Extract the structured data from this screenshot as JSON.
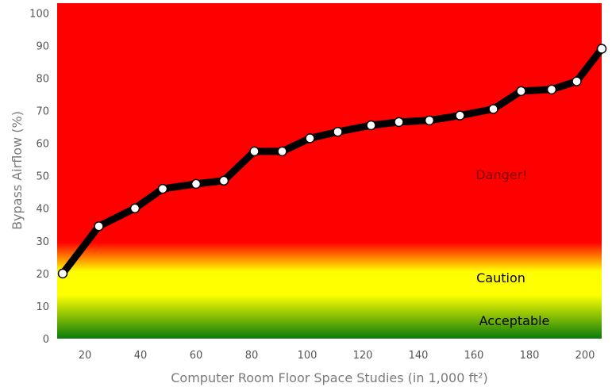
{
  "chart_data": {
    "type": "line",
    "xlabel": "Computer Room Floor Space Studies (in 1,000 ft²)",
    "ylabel": "Bypass Airflow (%)",
    "xlim": [
      10,
      206
    ],
    "ylim": [
      0,
      103
    ],
    "xticks": [
      20,
      40,
      60,
      80,
      100,
      120,
      140,
      160,
      180,
      200
    ],
    "yticks": [
      0,
      10,
      20,
      30,
      40,
      50,
      60,
      70,
      80,
      90,
      100
    ],
    "grid": false,
    "series": [
      {
        "x": [
          12,
          25,
          38,
          48,
          60,
          70,
          81,
          91,
          101,
          111,
          123,
          133,
          144,
          155,
          167,
          177,
          188,
          197,
          206
        ],
        "y": [
          20,
          34.5,
          40,
          46,
          47.5,
          48.5,
          57.5,
          57.5,
          61.5,
          63.5,
          65.5,
          66.5,
          67,
          68.5,
          70.5,
          76,
          76.5,
          79,
          89
        ]
      }
    ],
    "zones": [
      {
        "label": "Danger!",
        "color": "#ff0000",
        "text_color": "#7a0000"
      },
      {
        "label": "Caution",
        "color": "#ffff00",
        "text_color": "#000000"
      },
      {
        "label": "Acceptable",
        "color": "#008000",
        "text_color": "#000000"
      }
    ],
    "line_color": "#000000",
    "marker_color": "#ffffff"
  }
}
